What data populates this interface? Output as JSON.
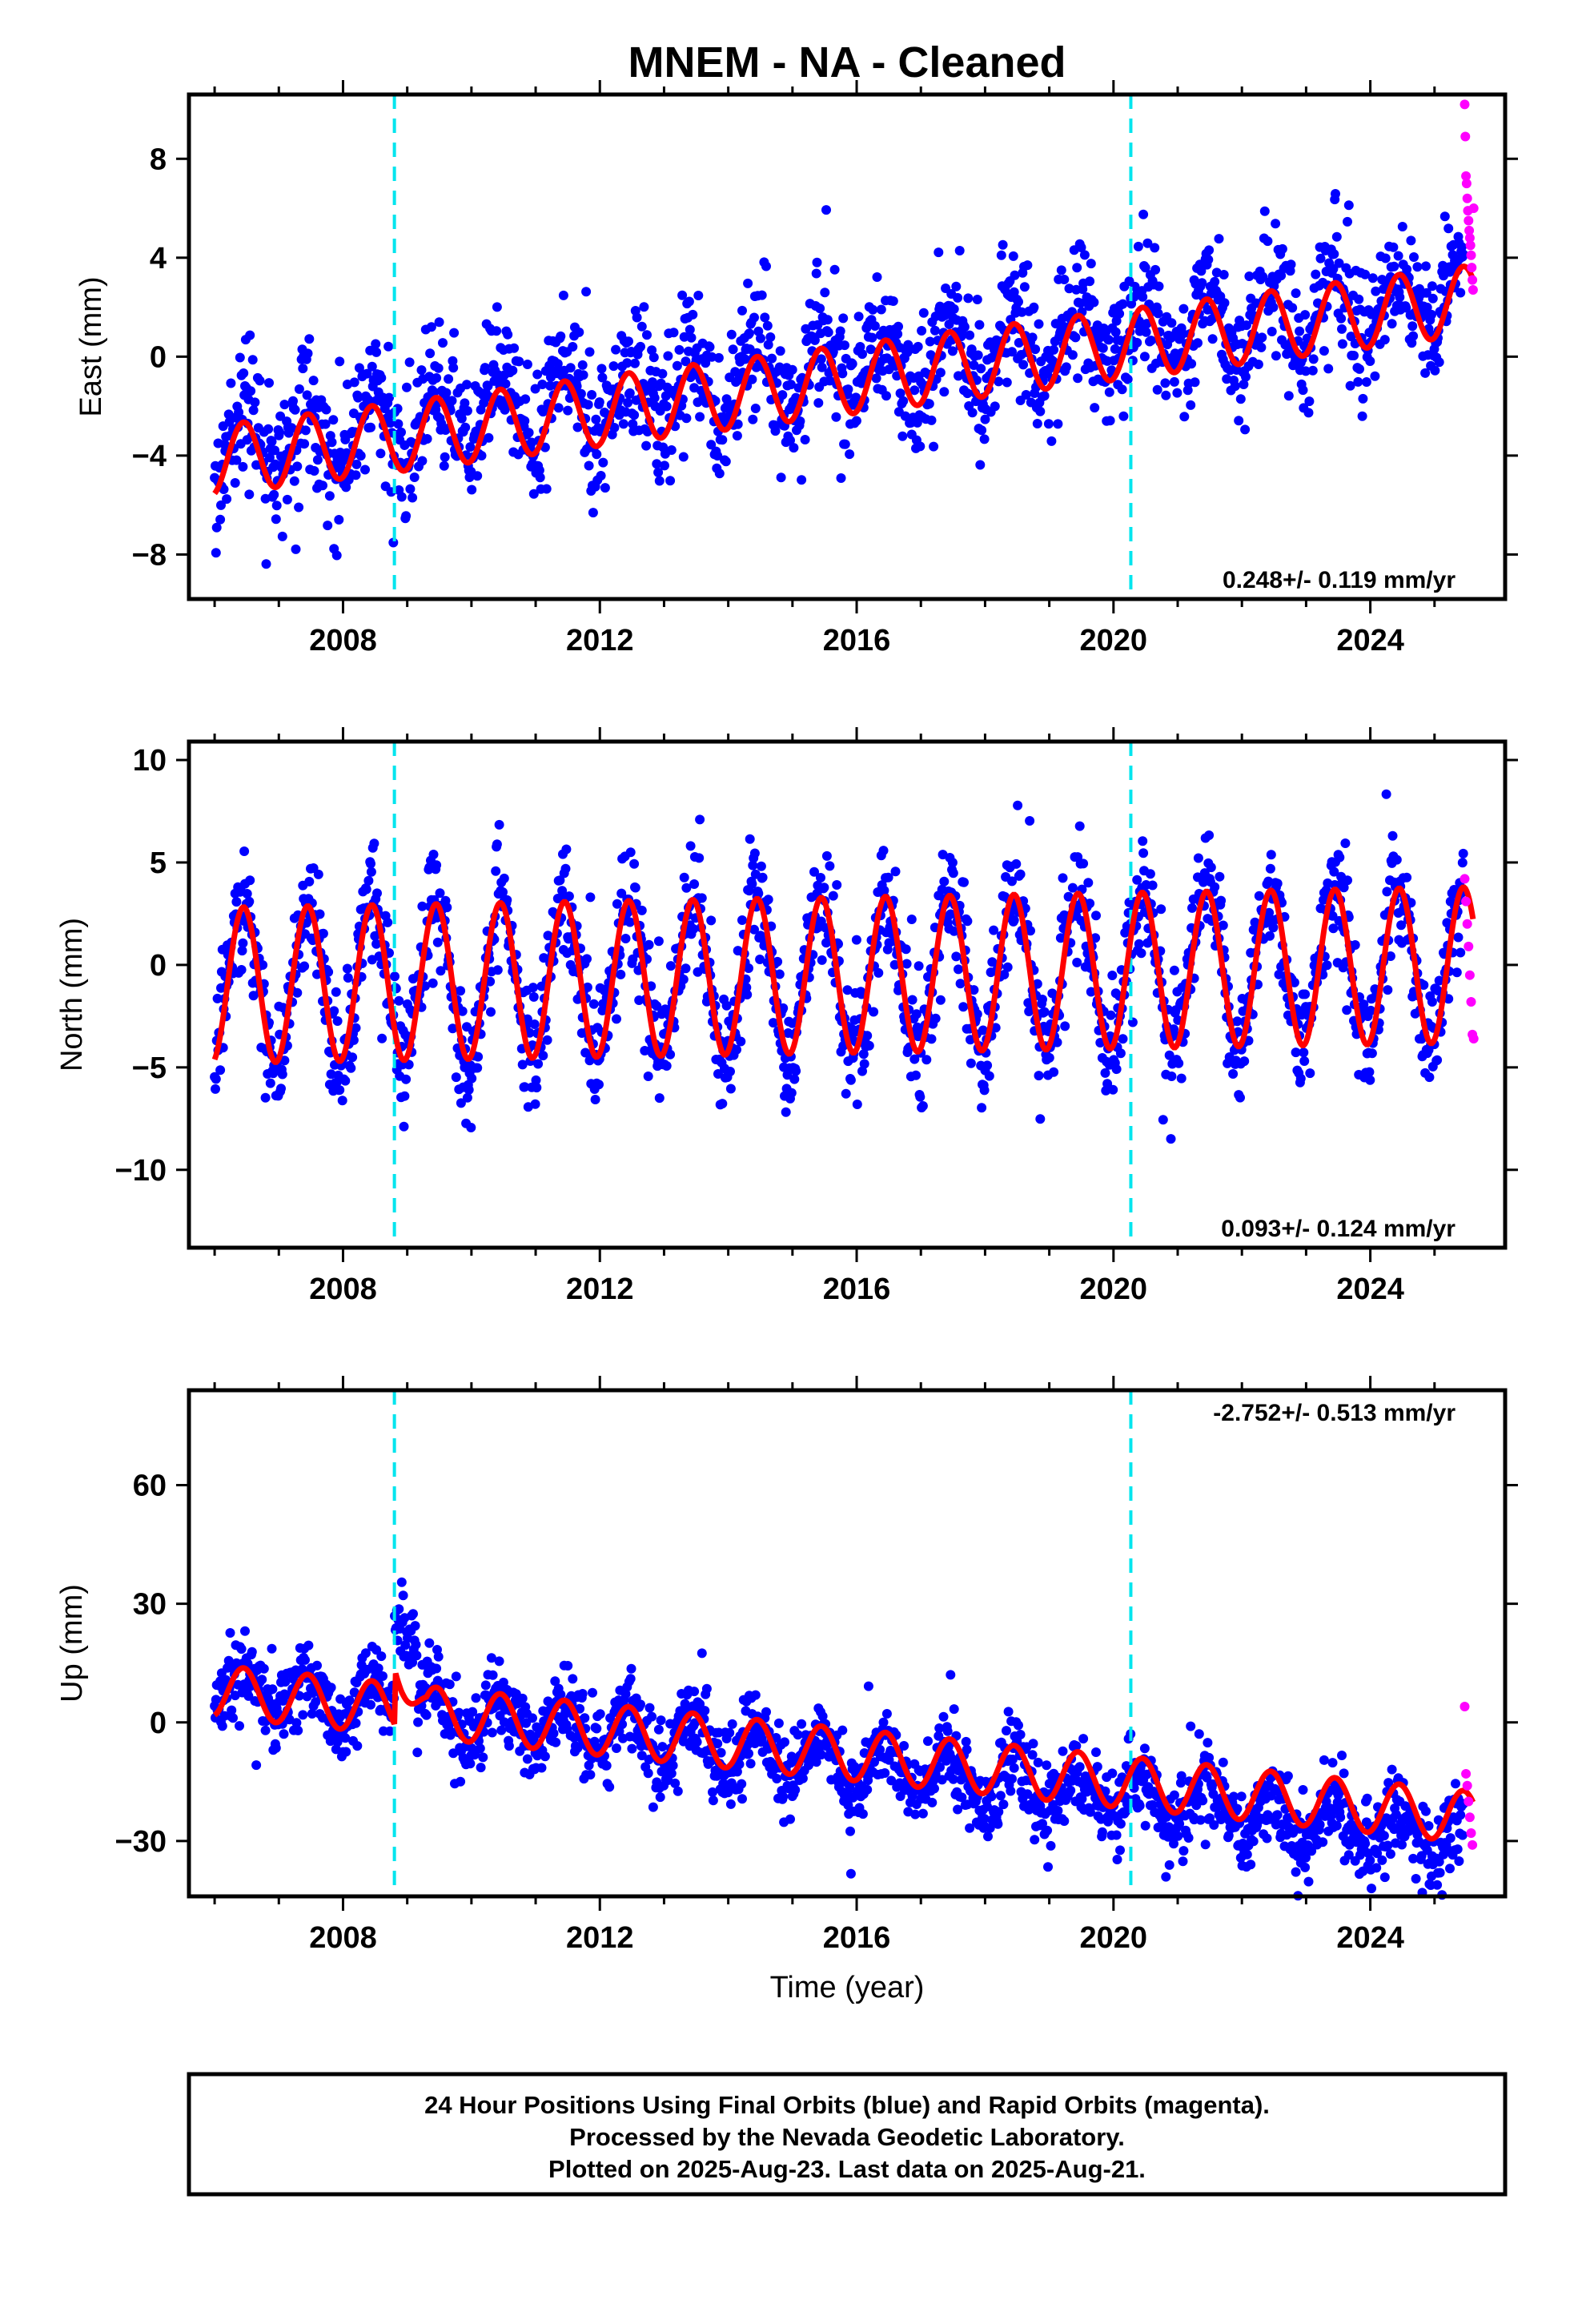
{
  "title": "MNEM  - NA - Cleaned",
  "x_axis_label": "Time (year)",
  "footer": {
    "line1": "24 Hour Positions Using Final Orbits (blue) and Rapid Orbits (magenta).",
    "line2": "Processed by the Nevada Geodetic Laboratory.",
    "line3": "Plotted on 2025-Aug-23. Last data on 2025-Aug-21."
  },
  "colors": {
    "final_orbits": "#0000ff",
    "rapid_orbits": "#ff00ff",
    "model": "#ff0000",
    "equipment_change": "#00e5ee"
  },
  "chart_data": [
    {
      "type": "scatter",
      "panel": "east",
      "ylabel": "East (mm)",
      "xlim": [
        2005.6,
        2026.1
      ],
      "ylim": [
        -9.8,
        10.6
      ],
      "x_ticks": [
        2008,
        2012,
        2016,
        2020,
        2024
      ],
      "y_ticks": [
        -8,
        -4,
        0,
        4,
        8
      ],
      "rate_text": "0.248+/- 0.119 mm/yr",
      "vertical_markers": [
        2008.8,
        2020.27
      ],
      "series": [
        {
          "role": "final_orbits",
          "x_range": [
            2006.0,
            2025.45
          ],
          "trend_start": -3.6,
          "trend_end": 2.6,
          "annual_amplitude": 1.4,
          "scatter_sd": 1.3
        },
        {
          "role": "rapid_orbits",
          "x": [
            2025.47,
            2025.48,
            2025.49,
            2025.5,
            2025.51,
            2025.52,
            2025.53,
            2025.54,
            2025.55,
            2025.56,
            2025.57,
            2025.58,
            2025.59,
            2025.6,
            2025.61
          ],
          "y": [
            10.2,
            8.9,
            7.3,
            7.0,
            6.4,
            5.9,
            5.5,
            5.1,
            4.8,
            4.5,
            4.1,
            3.6,
            3.1,
            2.7,
            6.0
          ]
        },
        {
          "role": "model",
          "x_range": [
            2006.0,
            2025.6
          ],
          "trend_start": -4.2,
          "trend_end": 2.3,
          "annual_amplitude": 1.4
        }
      ]
    },
    {
      "type": "scatter",
      "panel": "north",
      "ylabel": "North (mm)",
      "xlim": [
        2005.6,
        2026.1
      ],
      "ylim": [
        -13.8,
        10.9
      ],
      "x_ticks": [
        2008,
        2012,
        2016,
        2020,
        2024
      ],
      "y_ticks": [
        -10,
        -5,
        0,
        5,
        10
      ],
      "rate_text": "0.093+/- 0.124 mm/yr",
      "vertical_markers": [
        2008.8,
        2020.27
      ],
      "series": [
        {
          "role": "final_orbits",
          "x_range": [
            2006.0,
            2025.45
          ],
          "trend_start": -1.0,
          "trend_end": 0.0,
          "annual_amplitude": 3.8,
          "scatter_sd": 1.4
        },
        {
          "role": "rapid_orbits",
          "x": [
            2025.47,
            2025.49,
            2025.51,
            2025.53,
            2025.55,
            2025.57,
            2025.59,
            2025.61
          ],
          "y": [
            4.2,
            3.1,
            2.0,
            0.9,
            -0.5,
            -1.8,
            -3.4,
            -3.6
          ]
        },
        {
          "role": "model",
          "x_range": [
            2006.0,
            2025.6
          ],
          "trend_start": -1.0,
          "trend_end": 0.0,
          "annual_amplitude": 3.8
        }
      ]
    },
    {
      "type": "scatter",
      "panel": "up",
      "ylabel": "Up (mm)",
      "xlim": [
        2005.6,
        2026.1
      ],
      "ylim": [
        -44,
        84
      ],
      "x_ticks": [
        2008,
        2012,
        2016,
        2020,
        2024
      ],
      "y_ticks": [
        -30,
        0,
        30,
        60
      ],
      "rate_text": "-2.752+/- 0.513 mm/yr",
      "vertical_markers": [
        2008.8,
        2020.27
      ],
      "series": [
        {
          "role": "final_orbits",
          "x_range": [
            2006.0,
            2025.45
          ],
          "trend_start": 10.0,
          "trend_end": -30.0,
          "annual_amplitude": 6.0,
          "scatter_sd": 5.0
        },
        {
          "role": "rapid_orbits",
          "x": [
            2025.47,
            2025.49,
            2025.51,
            2025.53,
            2025.55,
            2025.57,
            2025.59
          ],
          "y": [
            4.0,
            -13.0,
            -16.0,
            -20.0,
            -24.0,
            -28.0,
            -31.0
          ]
        },
        {
          "role": "model",
          "x_range": [
            2006.0,
            2025.6
          ],
          "trend_start": 8.0,
          "trend_end": -24.0,
          "annual_amplitude": 6.5
        }
      ]
    }
  ]
}
